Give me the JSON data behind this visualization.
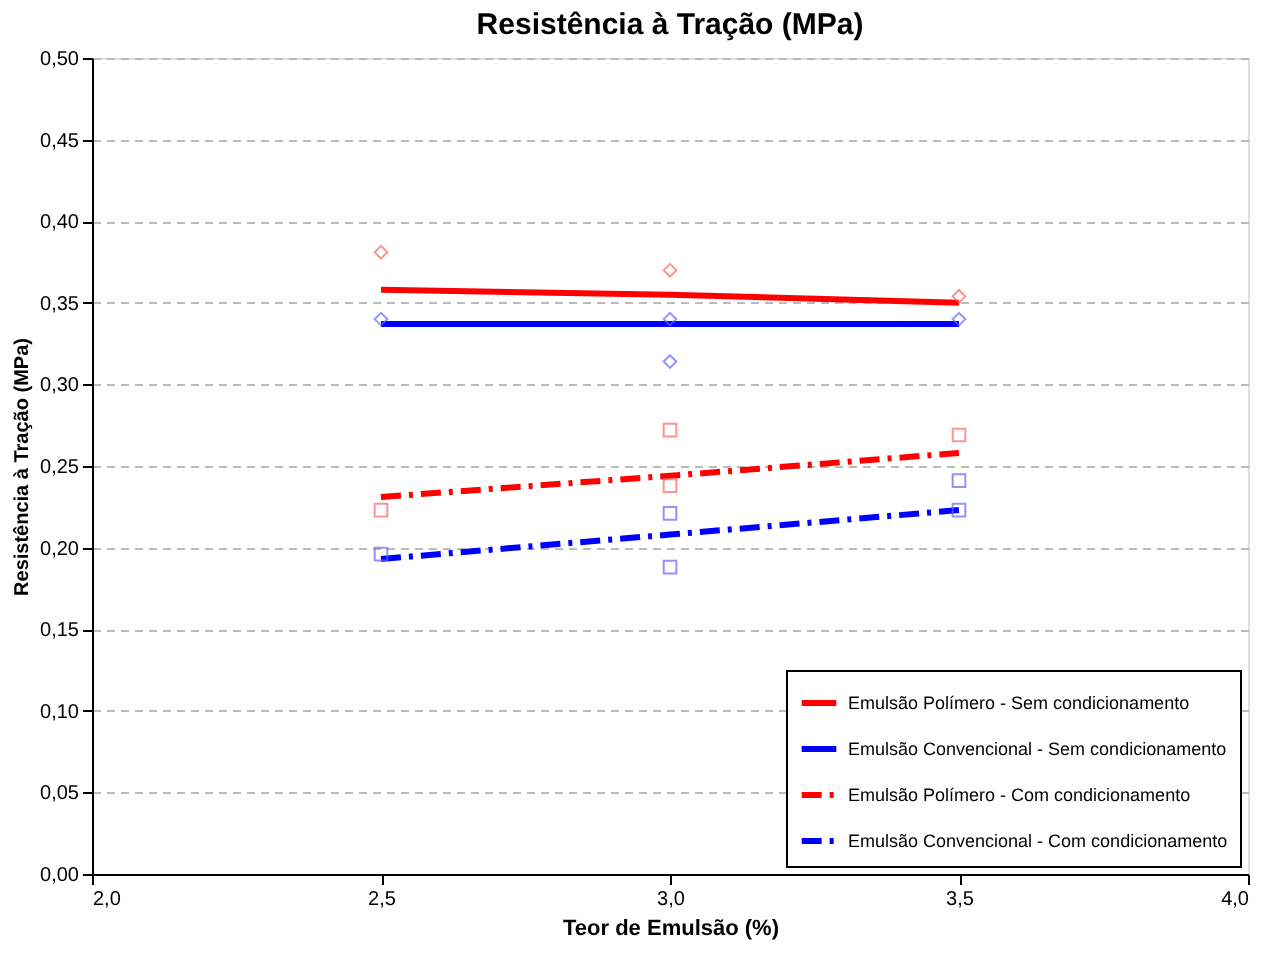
{
  "chart_data": {
    "type": "line",
    "title": "Resistência à Tração  (MPa)",
    "xlabel": "Teor de Emulsão (%)",
    "ylabel": "Resistência à Tração (MPa)",
    "xlim": [
      2.0,
      4.0
    ],
    "xticks": [
      {
        "value": 2.0,
        "label": "2,0"
      },
      {
        "value": 2.5,
        "label": "2,5"
      },
      {
        "value": 3.0,
        "label": "3,0"
      },
      {
        "value": 3.5,
        "label": "3,5"
      },
      {
        "value": 4.0,
        "label": "4,0"
      }
    ],
    "ylim": [
      0,
      0.5
    ],
    "yticks": [
      {
        "value": 0,
        "label": "0,00"
      },
      {
        "value": 0.05,
        "label": "0,05"
      },
      {
        "value": 0.1,
        "label": "0,10"
      },
      {
        "value": 0.15,
        "label": "0,15"
      },
      {
        "value": 0.2,
        "label": "0,20"
      },
      {
        "value": 0.25,
        "label": "0,25"
      },
      {
        "value": 0.3,
        "label": "0,30"
      },
      {
        "value": 0.35,
        "label": "0,35"
      },
      {
        "value": 0.4,
        "label": "0,40"
      },
      {
        "value": 0.45,
        "label": "0,45"
      },
      {
        "value": 0.5,
        "label": "0,50"
      }
    ],
    "grid": "y",
    "legend": "bottom right",
    "series": [
      {
        "name": "Emulsão Polímero - Sem condicionamento",
        "type": "line",
        "color": "#ff0000",
        "line_style": "solid",
        "marker": "none",
        "x": [
          2.5,
          3.0,
          3.5
        ],
        "values": [
          0.358,
          0.355,
          0.35
        ]
      },
      {
        "name": "Emulsão Convencional - Sem condicionamento",
        "type": "line",
        "color": "#0000ff",
        "line_style": "solid",
        "marker": "none",
        "x": [
          2.5,
          3.0,
          3.5
        ],
        "values": [
          0.337,
          0.337,
          0.337
        ]
      },
      {
        "name": "Emulsão Polímero - Com condicionamento",
        "type": "line",
        "color": "#ff0000",
        "line_style": "dashed",
        "marker": "none",
        "x": [
          2.5,
          3.0,
          3.5
        ],
        "values": [
          0.231,
          0.244,
          0.258
        ]
      },
      {
        "name": "Emulsão Convencional - Com condicionamento",
        "type": "line",
        "color": "#0000ff",
        "line_style": "dashed",
        "marker": "none",
        "x": [
          2.5,
          3.0,
          3.5
        ],
        "values": [
          0.193,
          0.208,
          0.223
        ]
      },
      {
        "type": "scatter",
        "color": "#ff6666",
        "marker": "diamond",
        "x": [
          2.5,
          3.0,
          3.5
        ],
        "values": [
          0.381,
          0.37,
          0.354
        ]
      },
      {
        "type": "scatter",
        "color": "#6666ff",
        "marker": "diamond",
        "x": [
          2.5,
          3.0,
          3.0,
          3.5
        ],
        "values": [
          0.34,
          0.34,
          0.314,
          0.34
        ]
      },
      {
        "type": "scatter",
        "color": "#ff6666",
        "marker": "square",
        "x": [
          2.5,
          3.0,
          3.0,
          3.5
        ],
        "values": [
          0.223,
          0.272,
          0.238,
          0.269
        ]
      },
      {
        "type": "scatter",
        "color": "#6666ff",
        "marker": "square",
        "x": [
          2.5,
          3.0,
          3.0,
          3.5,
          3.5
        ],
        "values": [
          0.196,
          0.221,
          0.188,
          0.241,
          0.223
        ]
      }
    ]
  }
}
